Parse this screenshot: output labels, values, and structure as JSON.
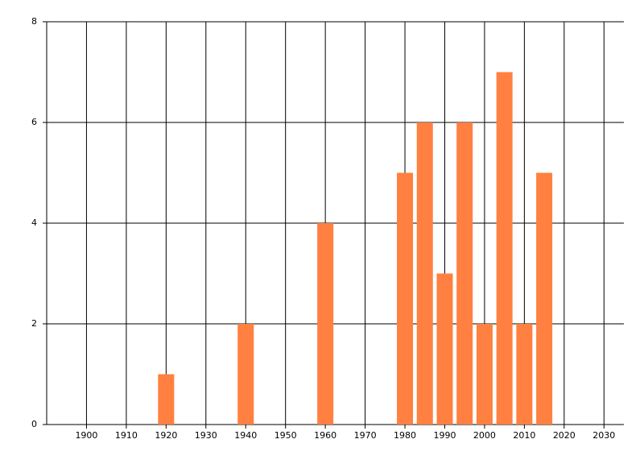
{
  "chart_data": {
    "type": "bar",
    "x": [
      1920,
      1940,
      1960,
      1980,
      1985,
      1990,
      1995,
      2000,
      2005,
      2010,
      2015
    ],
    "values": [
      1,
      2,
      4,
      5,
      6,
      3,
      6,
      2,
      7,
      2,
      5
    ],
    "color": "#ff8040",
    "xlim": [
      1890,
      2035
    ],
    "xticks": [
      1900,
      1910,
      1920,
      1930,
      1940,
      1950,
      1960,
      1970,
      1980,
      1990,
      2000,
      2010,
      2020,
      2030
    ],
    "ylim": [
      0,
      8
    ],
    "yticks": [
      0,
      2,
      4,
      6,
      8
    ],
    "grid": true
  }
}
